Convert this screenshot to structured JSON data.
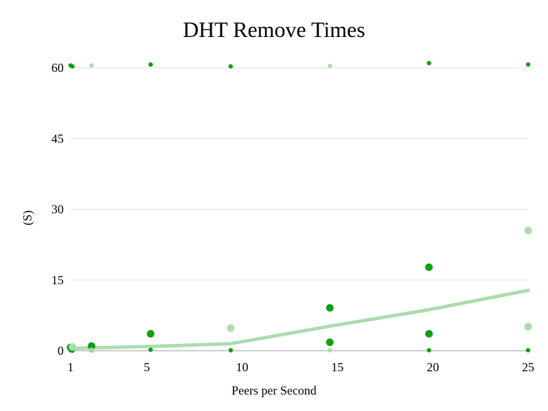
{
  "chart_data": {
    "type": "scatter",
    "title": "DHT Remove Times",
    "xlabel": "Peers per Second",
    "ylabel": "(S)",
    "xlim": [
      1,
      25
    ],
    "ylim": [
      0,
      60
    ],
    "x_ticks": [
      1,
      5,
      10,
      15,
      20,
      25
    ],
    "y_ticks": [
      0,
      15,
      30,
      45,
      60
    ],
    "grid": "horizontal",
    "legend": "none",
    "colors": {
      "dark_green": "#11a011",
      "light_green": "#acdcac",
      "gridline": "#dddddd"
    },
    "series": [
      {
        "color": "#11a011",
        "style": "points-large",
        "points": [
          {
            "x": 1,
            "y": 0.7
          },
          {
            "x": 2.1,
            "y": 1.0
          },
          {
            "x": 5.2,
            "y": 3.6
          },
          {
            "x": 14.6,
            "y": 9.1
          },
          {
            "x": 14.6,
            "y": 1.8
          },
          {
            "x": 19.8,
            "y": 17.7
          },
          {
            "x": 19.8,
            "y": 3.6
          }
        ]
      },
      {
        "color": "#11a011",
        "style": "points-small",
        "points": [
          {
            "x": 1,
            "y": 60.5
          },
          {
            "x": 1.1,
            "y": 60.3
          },
          {
            "x": 5.2,
            "y": 60.7
          },
          {
            "x": 9.4,
            "y": 60.3
          },
          {
            "x": 19.8,
            "y": 61.0
          },
          {
            "x": 25,
            "y": 60.7
          },
          {
            "x": 1,
            "y": 0.1
          },
          {
            "x": 1.1,
            "y": 0.0
          },
          {
            "x": 2.1,
            "y": 0.1
          },
          {
            "x": 5.2,
            "y": 0.2
          },
          {
            "x": 9.4,
            "y": 0.1
          },
          {
            "x": 19.8,
            "y": 0.1
          },
          {
            "x": 25,
            "y": 0.1
          }
        ]
      },
      {
        "color": "#acdcac",
        "style": "points-large",
        "points": [
          {
            "x": 1.1,
            "y": 0.8
          },
          {
            "x": 9.4,
            "y": 4.8
          },
          {
            "x": 25,
            "y": 25.5
          },
          {
            "x": 25,
            "y": 5.1
          }
        ]
      },
      {
        "color": "#acdcac",
        "style": "points-small",
        "points": [
          {
            "x": 2.1,
            "y": 60.5
          },
          {
            "x": 14.6,
            "y": 60.4
          },
          {
            "x": 14.6,
            "y": 0.1
          },
          {
            "x": 2.1,
            "y": 0.2
          }
        ]
      },
      {
        "color": "#acdcac",
        "style": "line",
        "points": [
          {
            "x": 1,
            "y": 0.5
          },
          {
            "x": 5.2,
            "y": 0.9
          },
          {
            "x": 9.4,
            "y": 1.5
          },
          {
            "x": 14.6,
            "y": 5.2
          },
          {
            "x": 19.8,
            "y": 8.7
          },
          {
            "x": 25,
            "y": 12.8
          }
        ]
      }
    ]
  }
}
